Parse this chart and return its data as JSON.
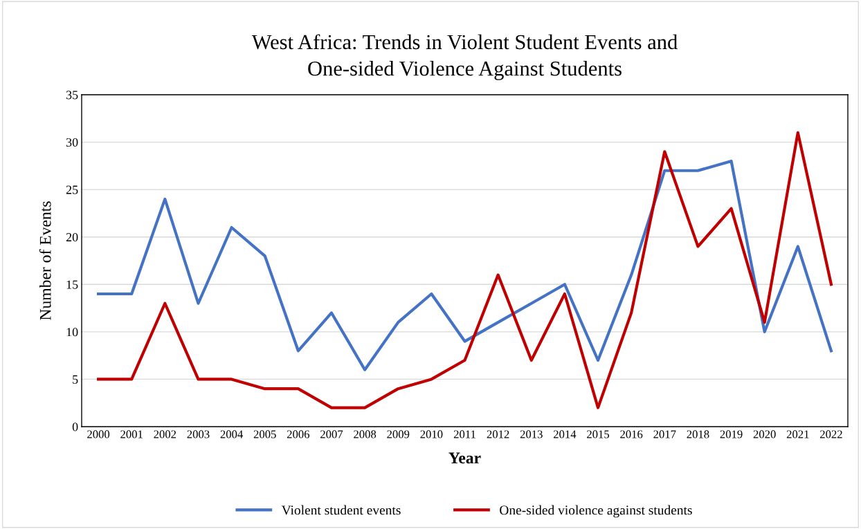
{
  "chart_data": {
    "type": "line",
    "title": "West Africa: Trends in Violent Student Events and\nOne-sided Violence Against Students",
    "xlabel": "Year",
    "ylabel": "Number of Events",
    "categories": [
      "2000",
      "2001",
      "2002",
      "2003",
      "2004",
      "2005",
      "2006",
      "2007",
      "2008",
      "2009",
      "2010",
      "2011",
      "2012",
      "2013",
      "2014",
      "2015",
      "2016",
      "2017",
      "2018",
      "2019",
      "2020",
      "2021",
      "2022"
    ],
    "series": [
      {
        "name": "Violent student events",
        "color": "#4472c4",
        "values": [
          14,
          14,
          24,
          13,
          21,
          18,
          8,
          12,
          6,
          11,
          14,
          9,
          11,
          13,
          15,
          7,
          16,
          27,
          27,
          28,
          10,
          19,
          8
        ]
      },
      {
        "name": "One-sided violence against students",
        "color": "#c00000",
        "values": [
          5,
          5,
          13,
          5,
          5,
          4,
          4,
          2,
          2,
          4,
          5,
          7,
          16,
          7,
          14,
          2,
          12,
          29,
          19,
          23,
          11,
          31,
          15
        ]
      }
    ],
    "ylim": [
      0,
      35
    ],
    "yticks": [
      0,
      5,
      10,
      15,
      20,
      25,
      30,
      35
    ],
    "grid": "y",
    "legend": "bottom",
    "marker": "none",
    "line_style": "solid"
  }
}
